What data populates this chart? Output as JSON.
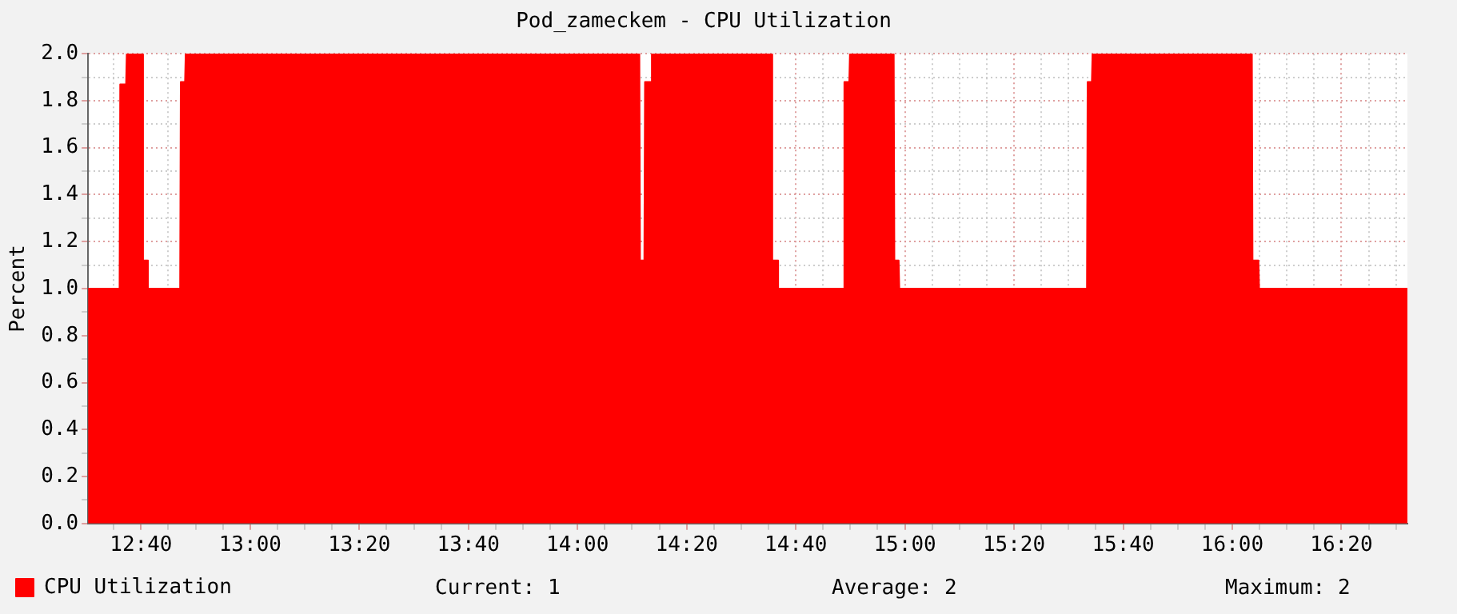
{
  "chart_data": {
    "type": "area",
    "title": "Pod_zameckem - CPU Utilization",
    "ylabel": "Percent",
    "x": [
      12.505,
      12.601,
      12.603,
      12.621,
      12.623,
      12.671,
      12.673,
      12.686,
      12.688,
      12.786,
      12.788,
      12.801,
      12.803,
      14.189,
      14.191,
      14.204,
      14.206,
      14.225,
      14.227,
      14.593,
      14.595,
      14.611,
      14.613,
      14.813,
      14.815,
      14.83,
      14.832,
      14.966,
      14.968,
      14.981,
      14.983,
      15.556,
      15.558,
      15.571,
      15.573,
      16.06,
      16.062,
      16.08,
      16.082,
      16.535
    ],
    "series": [
      {
        "name": "CPU Utilization",
        "color": "#ff0000",
        "values": [
          1,
          1,
          1.87,
          1.87,
          2,
          2,
          1.12,
          1.12,
          1,
          1,
          1.88,
          1.88,
          2,
          2,
          1.12,
          1.12,
          1.88,
          1.88,
          2,
          2,
          1.12,
          1.12,
          1,
          1,
          1.88,
          1.88,
          2,
          2,
          1.12,
          1.12,
          1,
          1,
          1.88,
          1.88,
          2,
          2,
          1.12,
          1.12,
          1,
          1
        ]
      }
    ],
    "xlim": [
      12.505,
      16.535
    ],
    "xticks": [
      {
        "value": 12.5833,
        "label": null
      },
      {
        "value": 12.6667,
        "label": "12:40"
      },
      {
        "value": 12.75,
        "label": null
      },
      {
        "value": 12.8333,
        "label": null
      },
      {
        "value": 12.9167,
        "label": null
      },
      {
        "value": 13,
        "label": "13:00"
      },
      {
        "value": 13.0833,
        "label": null
      },
      {
        "value": 13.1667,
        "label": null
      },
      {
        "value": 13.25,
        "label": null
      },
      {
        "value": 13.3333,
        "label": "13:20"
      },
      {
        "value": 13.4167,
        "label": null
      },
      {
        "value": 13.5,
        "label": null
      },
      {
        "value": 13.5833,
        "label": null
      },
      {
        "value": 13.6667,
        "label": "13:40"
      },
      {
        "value": 13.75,
        "label": null
      },
      {
        "value": 13.8333,
        "label": null
      },
      {
        "value": 13.9167,
        "label": null
      },
      {
        "value": 14,
        "label": "14:00"
      },
      {
        "value": 14.0833,
        "label": null
      },
      {
        "value": 14.1667,
        "label": null
      },
      {
        "value": 14.25,
        "label": null
      },
      {
        "value": 14.3333,
        "label": "14:20"
      },
      {
        "value": 14.4167,
        "label": null
      },
      {
        "value": 14.5,
        "label": null
      },
      {
        "value": 14.5833,
        "label": null
      },
      {
        "value": 14.6667,
        "label": "14:40"
      },
      {
        "value": 14.75,
        "label": null
      },
      {
        "value": 14.8333,
        "label": null
      },
      {
        "value": 14.9167,
        "label": null
      },
      {
        "value": 15,
        "label": "15:00"
      },
      {
        "value": 15.0833,
        "label": null
      },
      {
        "value": 15.1667,
        "label": null
      },
      {
        "value": 15.25,
        "label": null
      },
      {
        "value": 15.3333,
        "label": "15:20"
      },
      {
        "value": 15.4167,
        "label": null
      },
      {
        "value": 15.5,
        "label": null
      },
      {
        "value": 15.5833,
        "label": null
      },
      {
        "value": 15.6667,
        "label": "15:40"
      },
      {
        "value": 15.75,
        "label": null
      },
      {
        "value": 15.8333,
        "label": null
      },
      {
        "value": 15.9167,
        "label": null
      },
      {
        "value": 16,
        "label": "16:00"
      },
      {
        "value": 16.0833,
        "label": null
      },
      {
        "value": 16.1667,
        "label": null
      },
      {
        "value": 16.25,
        "label": null
      },
      {
        "value": 16.3333,
        "label": "16:20"
      },
      {
        "value": 16.4167,
        "label": null
      },
      {
        "value": 16.5,
        "label": null
      }
    ],
    "ylim": [
      0,
      2
    ],
    "yticks": [
      {
        "value": 0,
        "label": "0.0"
      },
      {
        "value": 0.1,
        "label": null
      },
      {
        "value": 0.2,
        "label": "0.2"
      },
      {
        "value": 0.3,
        "label": null
      },
      {
        "value": 0.4,
        "label": "0.4"
      },
      {
        "value": 0.5,
        "label": null
      },
      {
        "value": 0.6,
        "label": "0.6"
      },
      {
        "value": 0.7,
        "label": null
      },
      {
        "value": 0.8,
        "label": "0.8"
      },
      {
        "value": 0.9,
        "label": null
      },
      {
        "value": 1,
        "label": "1.0"
      },
      {
        "value": 1.1,
        "label": null
      },
      {
        "value": 1.2,
        "label": "1.2"
      },
      {
        "value": 1.3,
        "label": null
      },
      {
        "value": 1.4,
        "label": "1.4"
      },
      {
        "value": 1.5,
        "label": null
      },
      {
        "value": 1.6,
        "label": "1.6"
      },
      {
        "value": 1.7,
        "label": null
      },
      {
        "value": 1.8,
        "label": "1.8"
      },
      {
        "value": 1.9,
        "label": null
      },
      {
        "value": 2,
        "label": "2.0"
      }
    ],
    "grid": true,
    "legend": "bottom left",
    "annotations": [
      "Current: 1",
      "Average: 2",
      "Maximum: 2"
    ]
  }
}
